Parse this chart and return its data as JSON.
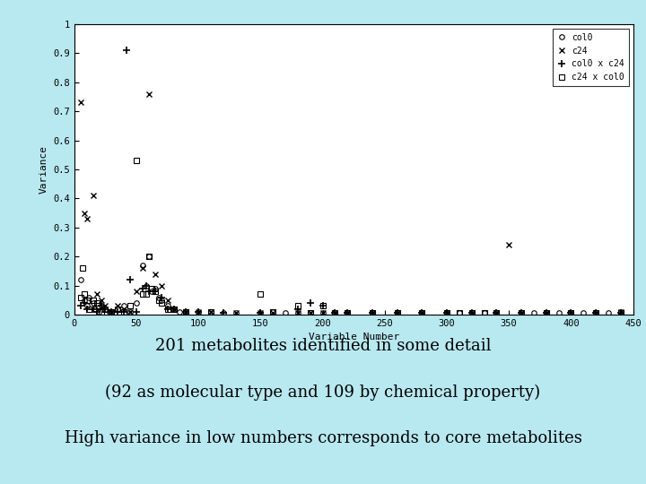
{
  "title": "",
  "xlabel": "Variable Number",
  "ylabel": "Variance",
  "xlim": [
    0,
    450
  ],
  "ylim": [
    0,
    1.0
  ],
  "xticks": [
    0,
    50,
    100,
    150,
    200,
    250,
    300,
    350,
    400,
    450
  ],
  "yticks": [
    0,
    0.1,
    0.2,
    0.3,
    0.4,
    0.5,
    0.6,
    0.7,
    0.8,
    0.9,
    1
  ],
  "background": "#b8e8f0",
  "plot_bg": "#ffffff",
  "caption_lines": [
    "201 metabolites identified in some detail",
    "(92 as molecular type and 109 by chemical property)",
    "High variance in low numbers corresponds to core metabolites"
  ],
  "series": {
    "col0": {
      "marker": "o",
      "markersize": 4,
      "color": "black",
      "fillstyle": "none",
      "label": "col0",
      "x": [
        5,
        8,
        10,
        12,
        15,
        17,
        20,
        22,
        25,
        28,
        30,
        35,
        40,
        45,
        50,
        55,
        58,
        60,
        62,
        65,
        68,
        70,
        75,
        80,
        85,
        90,
        100,
        110,
        120,
        130,
        150,
        160,
        170,
        180,
        190,
        200,
        210,
        220,
        240,
        260,
        280,
        300,
        310,
        320,
        330,
        340,
        360,
        370,
        380,
        390,
        400,
        410,
        420,
        430,
        440
      ],
      "y": [
        0.12,
        0.05,
        0.03,
        0.06,
        0.04,
        0.02,
        0.01,
        0.03,
        0.02,
        0.01,
        0.01,
        0.02,
        0.03,
        0.01,
        0.04,
        0.17,
        0.1,
        0.2,
        0.08,
        0.09,
        0.06,
        0.05,
        0.03,
        0.02,
        0.01,
        0.01,
        0.01,
        0.01,
        0.005,
        0.005,
        0.005,
        0.01,
        0.005,
        0.005,
        0.005,
        0.005,
        0.005,
        0.005,
        0.005,
        0.005,
        0.005,
        0.005,
        0.005,
        0.005,
        0.005,
        0.005,
        0.005,
        0.005,
        0.005,
        0.005,
        0.005,
        0.005,
        0.005,
        0.005,
        0.01
      ]
    },
    "c24": {
      "marker": "x",
      "markersize": 5,
      "color": "black",
      "label": "c24",
      "x": [
        5,
        8,
        10,
        15,
        18,
        22,
        25,
        30,
        35,
        40,
        45,
        50,
        55,
        60,
        65,
        70,
        75,
        80,
        90,
        100,
        110,
        130,
        150,
        160,
        180,
        190,
        200,
        210,
        220,
        240,
        260,
        280,
        300,
        320,
        340,
        350,
        360,
        380,
        400,
        420,
        440
      ],
      "y": [
        0.73,
        0.35,
        0.33,
        0.41,
        0.07,
        0.05,
        0.03,
        0.01,
        0.03,
        0.02,
        0.01,
        0.08,
        0.16,
        0.76,
        0.14,
        0.1,
        0.05,
        0.02,
        0.01,
        0.01,
        0.01,
        0.005,
        0.005,
        0.005,
        0.005,
        0.005,
        0.005,
        0.005,
        0.005,
        0.005,
        0.005,
        0.005,
        0.005,
        0.005,
        0.005,
        0.24,
        0.005,
        0.005,
        0.005,
        0.005,
        0.01
      ]
    },
    "col0xc24": {
      "marker": "+",
      "markersize": 6,
      "color": "black",
      "label": "col0 x c24",
      "x": [
        5,
        8,
        10,
        15,
        18,
        22,
        25,
        30,
        35,
        40,
        42,
        45,
        50,
        55,
        58,
        60,
        65,
        70,
        75,
        80,
        90,
        100,
        120,
        150,
        180,
        190,
        200,
        210,
        220,
        240,
        260,
        280,
        300,
        320,
        340,
        360,
        380,
        400,
        420,
        440
      ],
      "y": [
        0.03,
        0.04,
        0.02,
        0.02,
        0.01,
        0.03,
        0.02,
        0.01,
        0.01,
        0.01,
        0.91,
        0.12,
        0.01,
        0.09,
        0.1,
        0.08,
        0.08,
        0.06,
        0.02,
        0.02,
        0.01,
        0.01,
        0.005,
        0.005,
        0.02,
        0.04,
        0.03,
        0.005,
        0.005,
        0.005,
        0.005,
        0.005,
        0.005,
        0.005,
        0.005,
        0.005,
        0.005,
        0.005,
        0.005,
        0.005
      ]
    },
    "c24xcol0": {
      "marker": "s",
      "markersize": 4,
      "color": "black",
      "fillstyle": "none",
      "label": "c24 x col0",
      "x": [
        5,
        7,
        8,
        10,
        12,
        15,
        18,
        20,
        22,
        25,
        30,
        35,
        40,
        45,
        50,
        55,
        58,
        60,
        62,
        65,
        68,
        70,
        75,
        80,
        90,
        110,
        150,
        160,
        180,
        190,
        200,
        210,
        220,
        240,
        260,
        280,
        300,
        310,
        320,
        330,
        340,
        360,
        380,
        400,
        420,
        440
      ],
      "y": [
        0.06,
        0.16,
        0.07,
        0.05,
        0.02,
        0.05,
        0.04,
        0.03,
        0.01,
        0.02,
        0.01,
        0.02,
        0.01,
        0.03,
        0.53,
        0.07,
        0.07,
        0.2,
        0.09,
        0.08,
        0.05,
        0.04,
        0.02,
        0.02,
        0.01,
        0.01,
        0.07,
        0.01,
        0.03,
        0.005,
        0.03,
        0.005,
        0.005,
        0.005,
        0.005,
        0.005,
        0.005,
        0.005,
        0.005,
        0.005,
        0.005,
        0.005,
        0.005,
        0.005,
        0.005,
        0.005
      ]
    }
  }
}
